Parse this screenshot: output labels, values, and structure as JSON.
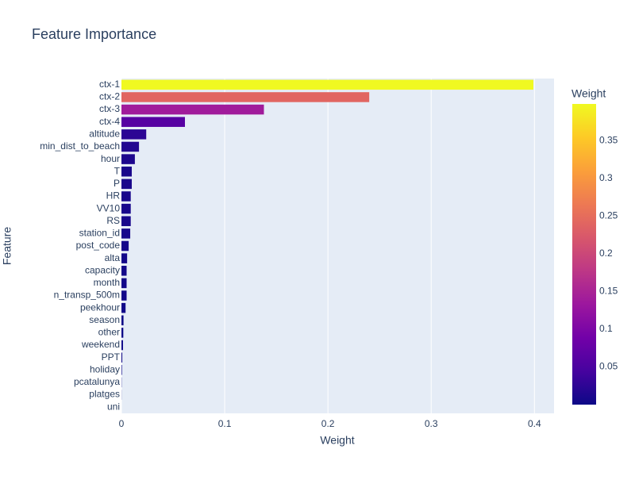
{
  "chart_data": {
    "type": "bar",
    "orientation": "horizontal",
    "title": "Feature Importance",
    "x_label": "Weight",
    "y_label": "Feature",
    "categories": [
      "ctx-1",
      "ctx-2",
      "ctx-3",
      "ctx-4",
      "altitude",
      "min_dist_to_beach",
      "hour",
      "T",
      "P",
      "HR",
      "VV10",
      "RS",
      "station_id",
      "post_code",
      "alta",
      "capacity",
      "month",
      "n_transp_500m",
      "peekhour",
      "season",
      "other",
      "weekend",
      "PPT",
      "holiday",
      "pcatalunya",
      "platges",
      "uni"
    ],
    "values": [
      0.399,
      0.24,
      0.138,
      0.0615,
      0.024,
      0.017,
      0.013,
      0.01,
      0.01,
      0.009,
      0.009,
      0.009,
      0.0085,
      0.007,
      0.0055,
      0.005,
      0.005,
      0.005,
      0.004,
      0.002,
      0.0018,
      0.0015,
      0.0008,
      0.0005,
      0.0002,
      0.0001,
      0
    ],
    "xlim": [
      0,
      0.419
    ],
    "xticks": [
      0,
      0.1,
      0.2,
      0.3,
      0.4
    ],
    "grid": true,
    "colorbar": {
      "title": "Weight",
      "lim": [
        0,
        0.399
      ],
      "ticks": [
        0.05,
        0.1,
        0.15,
        0.2,
        0.25,
        0.3,
        0.35
      ],
      "colorscale": [
        "#0d0887",
        "#46039f",
        "#7201a8",
        "#9c179e",
        "#bd3786",
        "#d8576b",
        "#ed7953",
        "#fb9f3a",
        "#fdca26",
        "#f0f921"
      ]
    }
  }
}
